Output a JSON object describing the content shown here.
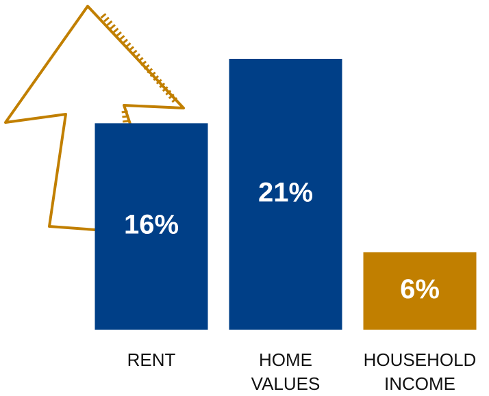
{
  "chart_data": {
    "type": "bar",
    "categories": [
      "RENT",
      "HOME VALUES",
      "HOUSEHOLD INCOME"
    ],
    "values": [
      16,
      21,
      6
    ],
    "value_labels": [
      "16%",
      "21%",
      "6%"
    ],
    "colors": [
      "#003f87",
      "#003f87",
      "#c17f00"
    ]
  }
}
